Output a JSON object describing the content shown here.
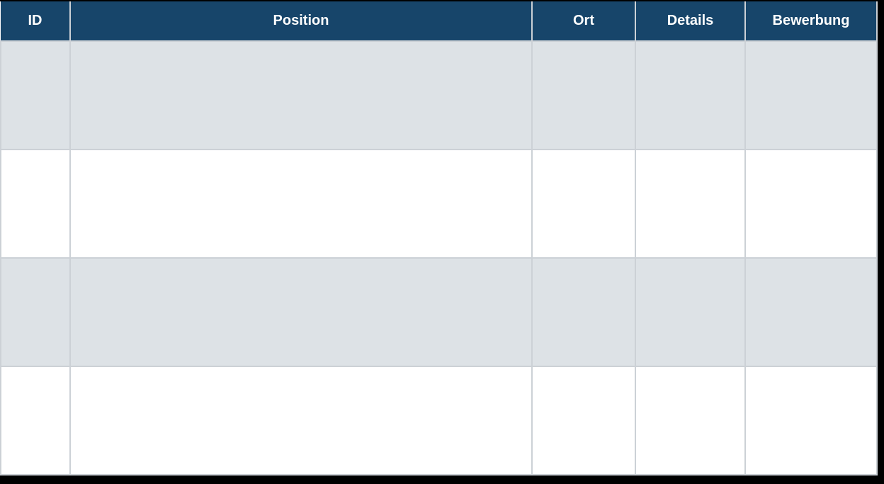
{
  "table": {
    "headers": [
      "ID",
      "Position",
      "Ort",
      "Details",
      "Bewerbung"
    ],
    "rows": [
      [
        "",
        "",
        "",
        "",
        ""
      ],
      [
        "",
        "",
        "",
        "",
        ""
      ],
      [
        "",
        "",
        "",
        "",
        ""
      ],
      [
        "",
        "",
        "",
        "",
        ""
      ]
    ]
  },
  "colors": {
    "header_bg": "#17456a",
    "header_text": "#ffffff",
    "row_alt_bg": "#dde2e6",
    "row_bg": "#ffffff",
    "border": "#ccd1d6",
    "frame": "#000000"
  }
}
